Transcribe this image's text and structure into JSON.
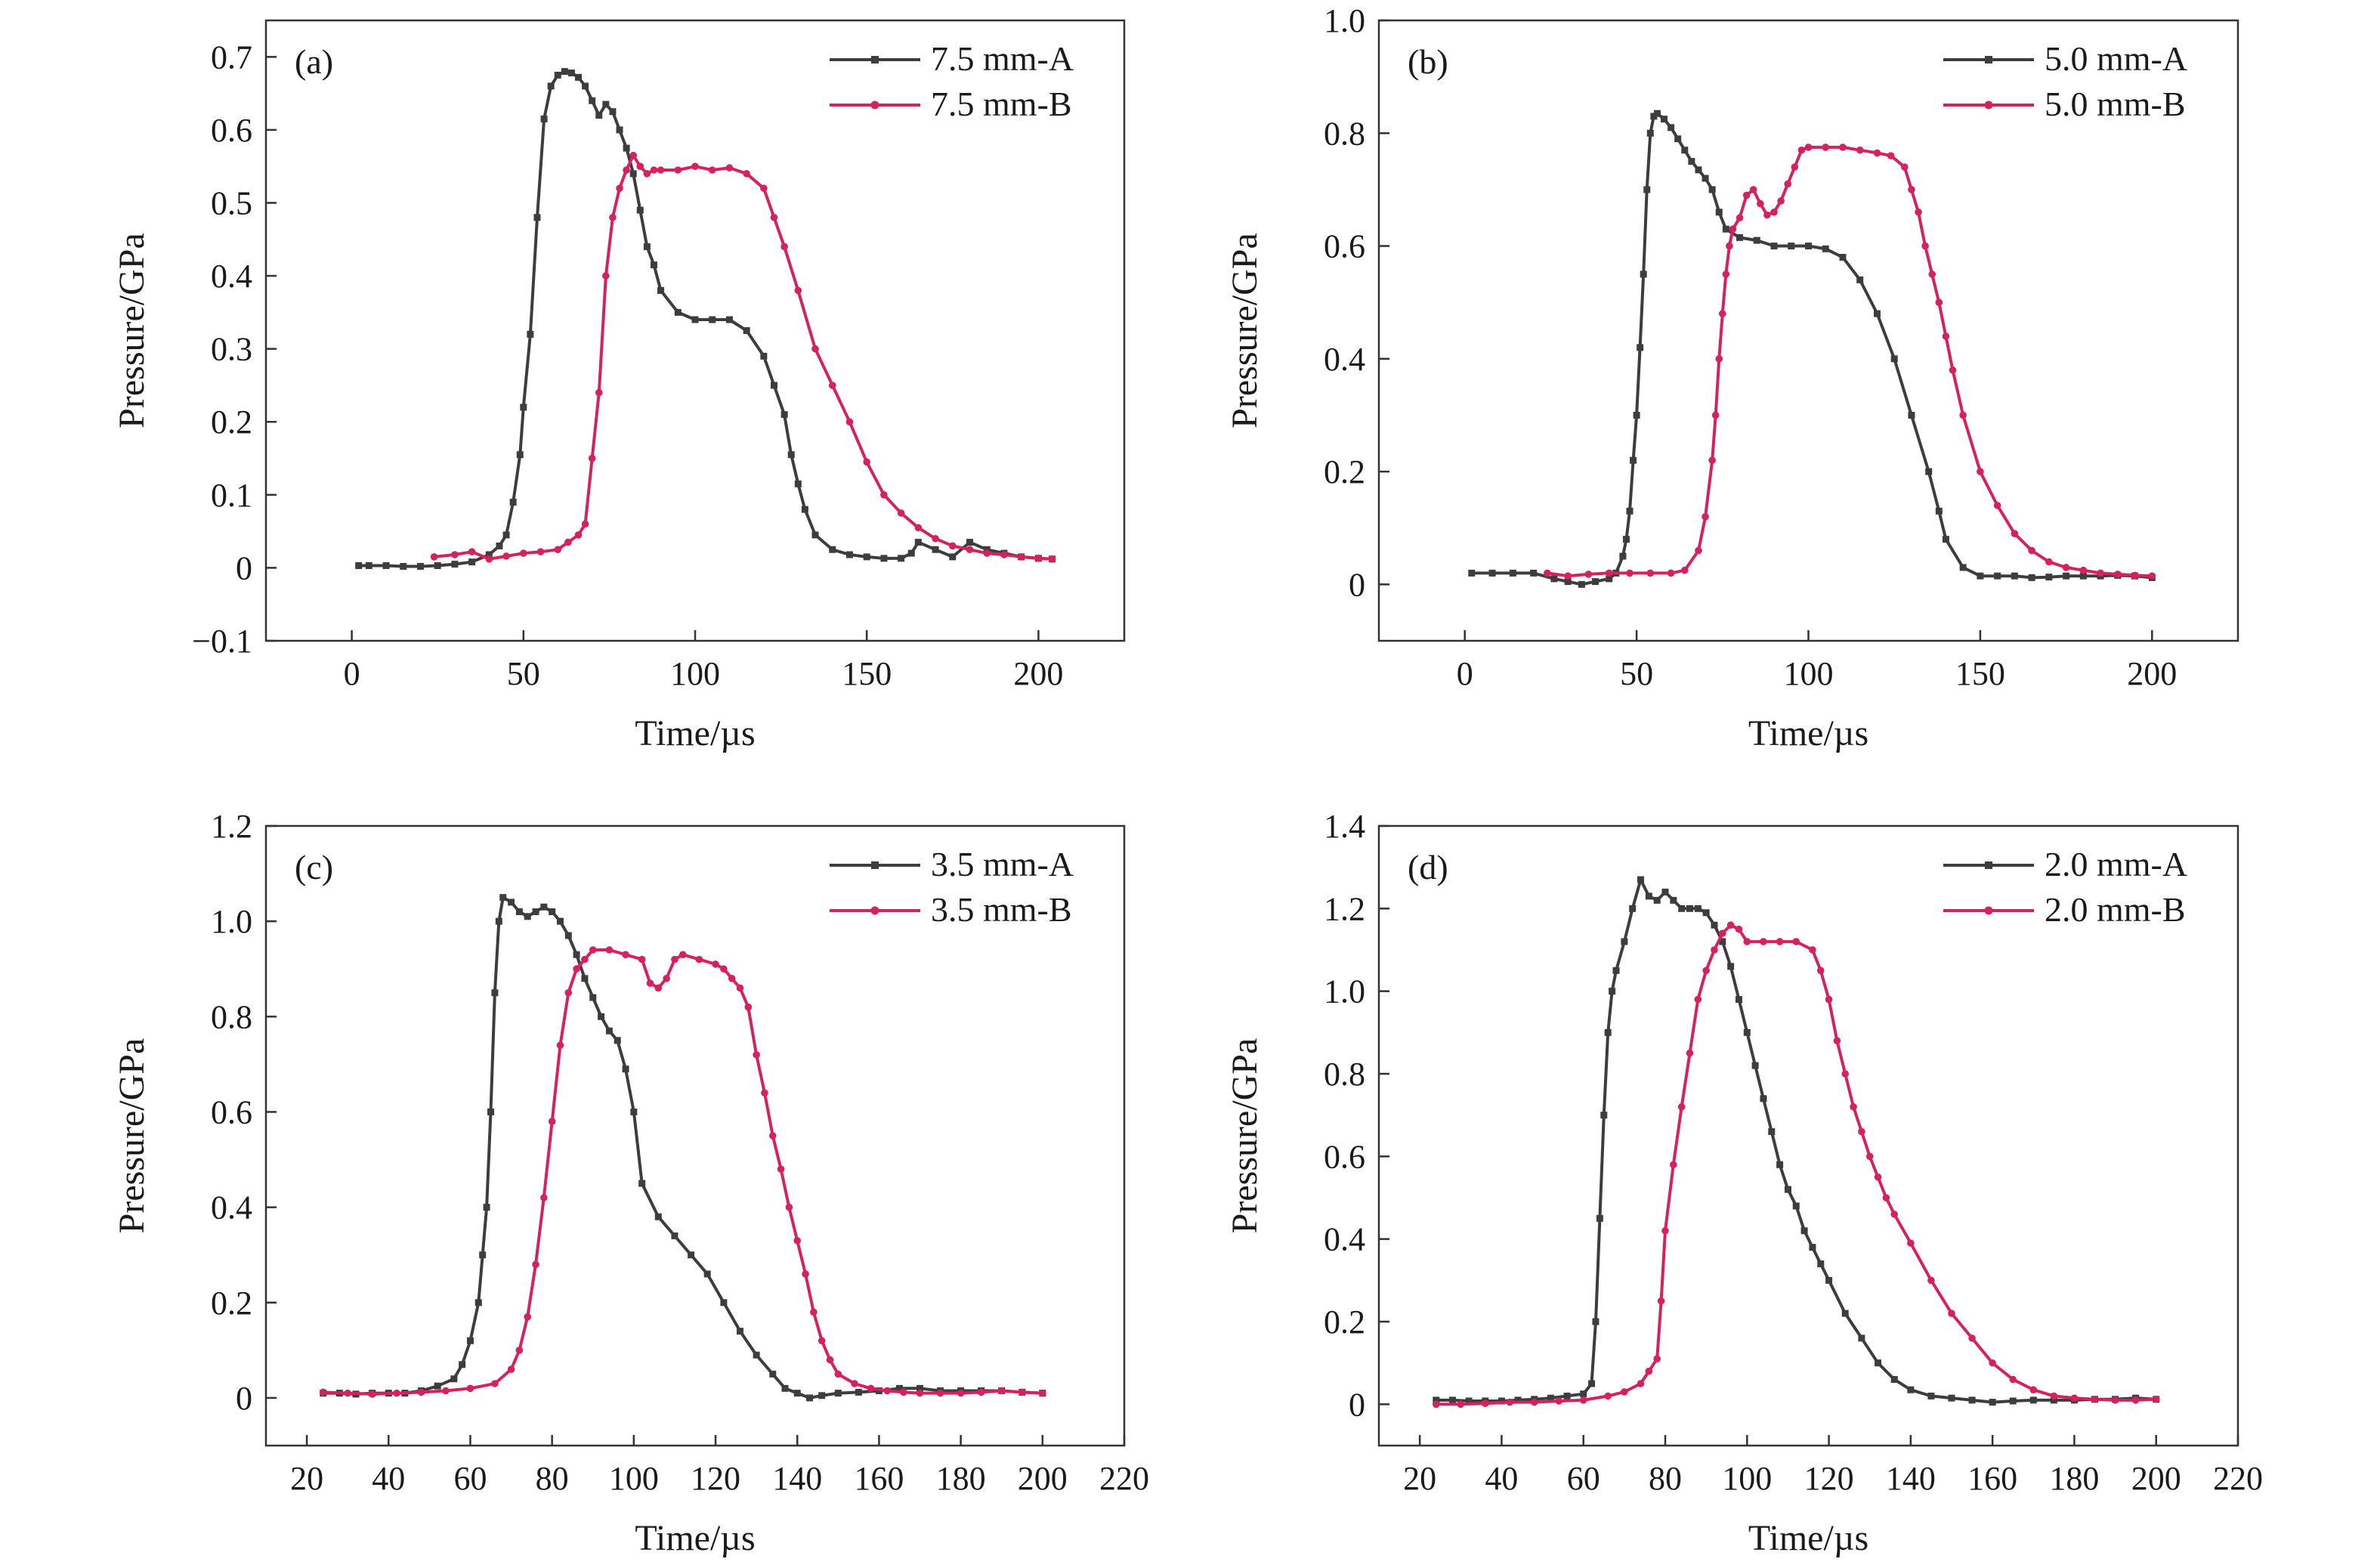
{
  "chart_data": [
    {
      "type": "line",
      "panel_label": "(a)",
      "xlabel": "Time/µs",
      "ylabel": "Pressure/GPa",
      "xlim": [
        -25,
        225
      ],
      "ylim": [
        -0.1,
        0.75
      ],
      "xticks": [
        0,
        50,
        100,
        150,
        200
      ],
      "xtick_labels": [
        "0",
        "50",
        "100",
        "150",
        "200"
      ],
      "yticks": [
        -0.1,
        0,
        0.1,
        0.2,
        0.3,
        0.4,
        0.5,
        0.6,
        0.7
      ],
      "ytick_labels": [
        "−0.1",
        "0",
        "0.1",
        "0.2",
        "0.3",
        "0.4",
        "0.5",
        "0.6",
        "0.7"
      ],
      "legend_position": "top-right",
      "series": [
        {
          "name": "7.5 mm-A",
          "color": "#3d3d3d",
          "marker": "square",
          "x": [
            2,
            5,
            10,
            15,
            20,
            25,
            30,
            35,
            40,
            43,
            45,
            47,
            49,
            50,
            52,
            54,
            56,
            58,
            60,
            62,
            64,
            66,
            68,
            70,
            72,
            74,
            76,
            78,
            80,
            82,
            84,
            86,
            88,
            90,
            95,
            100,
            105,
            110,
            115,
            120,
            123,
            126,
            128,
            130,
            132,
            135,
            140,
            145,
            150,
            155,
            160,
            163,
            165,
            170,
            175,
            180,
            185,
            190,
            195,
            200,
            204
          ],
          "y": [
            0.003,
            0.003,
            0.003,
            0.002,
            0.002,
            0.003,
            0.005,
            0.008,
            0.018,
            0.03,
            0.045,
            0.09,
            0.155,
            0.22,
            0.32,
            0.48,
            0.615,
            0.66,
            0.675,
            0.68,
            0.678,
            0.672,
            0.66,
            0.64,
            0.62,
            0.635,
            0.625,
            0.6,
            0.575,
            0.54,
            0.49,
            0.44,
            0.415,
            0.38,
            0.35,
            0.34,
            0.34,
            0.34,
            0.325,
            0.29,
            0.25,
            0.21,
            0.155,
            0.115,
            0.08,
            0.045,
            0.025,
            0.018,
            0.015,
            0.013,
            0.013,
            0.02,
            0.035,
            0.025,
            0.015,
            0.035,
            0.025,
            0.02,
            0.015,
            0.013,
            0.012
          ]
        },
        {
          "name": "7.5 mm-B",
          "color": "#d6215f",
          "marker": "circle",
          "x": [
            24,
            30,
            35,
            40,
            45,
            50,
            55,
            60,
            63,
            66,
            68,
            70,
            72,
            74,
            76,
            78,
            80,
            82,
            84,
            86,
            88,
            90,
            95,
            100,
            105,
            110,
            115,
            120,
            123,
            126,
            130,
            135,
            140,
            145,
            150,
            155,
            160,
            165,
            170,
            175,
            180,
            185,
            190,
            195,
            200,
            204
          ],
          "y": [
            0.015,
            0.018,
            0.022,
            0.012,
            0.016,
            0.02,
            0.022,
            0.025,
            0.035,
            0.045,
            0.06,
            0.15,
            0.24,
            0.4,
            0.48,
            0.52,
            0.545,
            0.565,
            0.55,
            0.54,
            0.545,
            0.545,
            0.545,
            0.55,
            0.545,
            0.548,
            0.54,
            0.52,
            0.48,
            0.44,
            0.38,
            0.3,
            0.25,
            0.2,
            0.145,
            0.1,
            0.075,
            0.055,
            0.04,
            0.03,
            0.025,
            0.02,
            0.018,
            0.015,
            0.013,
            0.012
          ]
        }
      ]
    },
    {
      "type": "line",
      "panel_label": "(b)",
      "xlabel": "Time/µs",
      "ylabel": "Pressure/GPa",
      "xlim": [
        -25,
        225
      ],
      "ylim": [
        -0.1,
        1.0
      ],
      "xticks": [
        0,
        50,
        100,
        150,
        200
      ],
      "xtick_labels": [
        "0",
        "50",
        "100",
        "150",
        "200"
      ],
      "yticks": [
        0,
        0.2,
        0.4,
        0.6,
        0.8,
        1.0
      ],
      "ytick_labels": [
        "0",
        "0.2",
        "0.4",
        "0.6",
        "0.8",
        "1.0"
      ],
      "legend_position": "top-right",
      "series": [
        {
          "name": "5.0 mm-A",
          "color": "#3d3d3d",
          "marker": "square",
          "x": [
            2,
            8,
            14,
            20,
            26,
            30,
            34,
            38,
            42,
            44,
            46,
            47,
            48,
            49,
            50,
            51,
            52,
            53,
            54,
            55,
            56,
            58,
            60,
            62,
            64,
            66,
            68,
            70,
            72,
            74,
            76,
            80,
            85,
            90,
            95,
            100,
            105,
            110,
            115,
            120,
            125,
            130,
            135,
            138,
            140,
            145,
            150,
            155,
            160,
            165,
            170,
            175,
            180,
            185,
            190,
            195,
            200
          ],
          "y": [
            0.02,
            0.02,
            0.02,
            0.02,
            0.01,
            0.005,
            0.0,
            0.005,
            0.01,
            0.02,
            0.05,
            0.08,
            0.13,
            0.22,
            0.3,
            0.42,
            0.55,
            0.7,
            0.8,
            0.83,
            0.835,
            0.825,
            0.81,
            0.79,
            0.77,
            0.75,
            0.735,
            0.72,
            0.7,
            0.66,
            0.63,
            0.615,
            0.61,
            0.6,
            0.6,
            0.6,
            0.595,
            0.58,
            0.54,
            0.48,
            0.4,
            0.3,
            0.2,
            0.13,
            0.08,
            0.03,
            0.015,
            0.015,
            0.015,
            0.012,
            0.013,
            0.015,
            0.015,
            0.015,
            0.016,
            0.015,
            0.012
          ]
        },
        {
          "name": "5.0 mm-B",
          "color": "#d6215f",
          "marker": "circle",
          "x": [
            24,
            30,
            36,
            42,
            48,
            54,
            60,
            64,
            68,
            70,
            72,
            73,
            74,
            75,
            76,
            77,
            78,
            80,
            82,
            84,
            86,
            88,
            90,
            92,
            94,
            96,
            98,
            100,
            105,
            110,
            115,
            120,
            124,
            128,
            130,
            132,
            134,
            136,
            138,
            140,
            142,
            145,
            150,
            155,
            160,
            165,
            170,
            175,
            180,
            185,
            190,
            195,
            200
          ],
          "y": [
            0.02,
            0.015,
            0.018,
            0.02,
            0.02,
            0.02,
            0.02,
            0.025,
            0.06,
            0.12,
            0.22,
            0.3,
            0.4,
            0.48,
            0.55,
            0.6,
            0.63,
            0.65,
            0.69,
            0.7,
            0.675,
            0.655,
            0.66,
            0.68,
            0.71,
            0.74,
            0.77,
            0.775,
            0.775,
            0.775,
            0.77,
            0.765,
            0.76,
            0.74,
            0.7,
            0.66,
            0.6,
            0.55,
            0.5,
            0.44,
            0.38,
            0.3,
            0.2,
            0.14,
            0.09,
            0.06,
            0.04,
            0.03,
            0.025,
            0.02,
            0.018,
            0.016,
            0.015
          ]
        }
      ]
    },
    {
      "type": "line",
      "panel_label": "(c)",
      "xlabel": "Time/µs",
      "ylabel": "Pressure/GPa",
      "xlim": [
        10,
        220
      ],
      "ylim": [
        -0.1,
        1.2
      ],
      "xticks": [
        20,
        40,
        60,
        80,
        100,
        120,
        140,
        160,
        180,
        200,
        220
      ],
      "xtick_labels": [
        "20",
        "40",
        "60",
        "80",
        "100",
        "120",
        "140",
        "160",
        "180",
        "200",
        "220"
      ],
      "yticks": [
        0,
        0.2,
        0.4,
        0.6,
        0.8,
        1.0,
        1.2
      ],
      "ytick_labels": [
        "0",
        "0.2",
        "0.4",
        "0.6",
        "0.8",
        "1.0",
        "1.2"
      ],
      "legend_position": "top-right",
      "series": [
        {
          "name": "3.5 mm-A",
          "color": "#3d3d3d",
          "marker": "square",
          "x": [
            24,
            28,
            32,
            36,
            40,
            44,
            48,
            52,
            56,
            58,
            60,
            62,
            63,
            64,
            65,
            66,
            67,
            68,
            70,
            72,
            74,
            76,
            78,
            80,
            82,
            84,
            86,
            88,
            90,
            92,
            94,
            96,
            98,
            100,
            102,
            106,
            110,
            114,
            118,
            122,
            126,
            130,
            134,
            137,
            140,
            143,
            146,
            150,
            155,
            160,
            165,
            170,
            175,
            180,
            185,
            190,
            195,
            200
          ],
          "y": [
            0.01,
            0.01,
            0.008,
            0.01,
            0.01,
            0.01,
            0.015,
            0.025,
            0.04,
            0.07,
            0.12,
            0.2,
            0.3,
            0.4,
            0.6,
            0.85,
            1.0,
            1.05,
            1.04,
            1.02,
            1.01,
            1.02,
            1.03,
            1.02,
            1.0,
            0.97,
            0.93,
            0.88,
            0.84,
            0.8,
            0.77,
            0.75,
            0.69,
            0.6,
            0.45,
            0.38,
            0.34,
            0.3,
            0.26,
            0.2,
            0.14,
            0.09,
            0.05,
            0.02,
            0.01,
            0.0,
            0.005,
            0.01,
            0.012,
            0.015,
            0.02,
            0.02,
            0.015,
            0.015,
            0.015,
            0.015,
            0.012,
            0.01
          ]
        },
        {
          "name": "3.5 mm-B",
          "color": "#d6215f",
          "marker": "circle",
          "x": [
            24,
            30,
            36,
            42,
            48,
            54,
            60,
            66,
            70,
            72,
            74,
            76,
            78,
            80,
            82,
            84,
            86,
            88,
            90,
            94,
            98,
            102,
            104,
            106,
            108,
            110,
            112,
            116,
            120,
            122,
            124,
            126,
            128,
            130,
            132,
            134,
            136,
            138,
            140,
            142,
            144,
            146,
            148,
            150,
            154,
            158,
            162,
            166,
            170,
            175,
            180,
            185,
            190,
            195,
            200
          ],
          "y": [
            0.012,
            0.01,
            0.008,
            0.01,
            0.012,
            0.015,
            0.02,
            0.03,
            0.06,
            0.1,
            0.17,
            0.28,
            0.42,
            0.58,
            0.74,
            0.85,
            0.9,
            0.92,
            0.94,
            0.94,
            0.93,
            0.92,
            0.87,
            0.86,
            0.88,
            0.92,
            0.93,
            0.92,
            0.91,
            0.9,
            0.88,
            0.86,
            0.82,
            0.72,
            0.64,
            0.55,
            0.48,
            0.4,
            0.33,
            0.26,
            0.18,
            0.12,
            0.08,
            0.05,
            0.03,
            0.02,
            0.015,
            0.012,
            0.01,
            0.01,
            0.01,
            0.012,
            0.015,
            0.012,
            0.01
          ]
        }
      ]
    },
    {
      "type": "line",
      "panel_label": "(d)",
      "xlabel": "Time/µs",
      "ylabel": "Pressure/GPa",
      "xlim": [
        10,
        220
      ],
      "ylim": [
        -0.1,
        1.4
      ],
      "xticks": [
        20,
        40,
        60,
        80,
        100,
        120,
        140,
        160,
        180,
        200,
        220
      ],
      "xtick_labels": [
        "20",
        "40",
        "60",
        "80",
        "100",
        "120",
        "140",
        "160",
        "180",
        "200",
        "220"
      ],
      "yticks": [
        0,
        0.2,
        0.4,
        0.6,
        0.8,
        1.0,
        1.2,
        1.4
      ],
      "ytick_labels": [
        "0",
        "0.2",
        "0.4",
        "0.6",
        "0.8",
        "1.0",
        "1.2",
        "1.4"
      ],
      "legend_position": "top-right",
      "series": [
        {
          "name": "2.0 mm-A",
          "color": "#3d3d3d",
          "marker": "square",
          "x": [
            24,
            28,
            32,
            36,
            40,
            44,
            48,
            52,
            56,
            60,
            62,
            63,
            64,
            65,
            66,
            67,
            68,
            70,
            72,
            74,
            76,
            78,
            80,
            82,
            84,
            86,
            88,
            90,
            92,
            94,
            96,
            98,
            100,
            102,
            104,
            106,
            108,
            110,
            112,
            114,
            116,
            118,
            120,
            124,
            128,
            132,
            136,
            140,
            145,
            150,
            155,
            160,
            165,
            170,
            175,
            180,
            185,
            190,
            195,
            200
          ],
          "y": [
            0.01,
            0.01,
            0.008,
            0.008,
            0.008,
            0.01,
            0.012,
            0.015,
            0.02,
            0.025,
            0.05,
            0.2,
            0.45,
            0.7,
            0.9,
            1.0,
            1.05,
            1.12,
            1.2,
            1.27,
            1.23,
            1.22,
            1.24,
            1.22,
            1.2,
            1.2,
            1.2,
            1.19,
            1.16,
            1.12,
            1.06,
            0.98,
            0.9,
            0.82,
            0.74,
            0.66,
            0.58,
            0.52,
            0.48,
            0.42,
            0.38,
            0.34,
            0.3,
            0.22,
            0.16,
            0.1,
            0.06,
            0.035,
            0.02,
            0.015,
            0.01,
            0.005,
            0.008,
            0.01,
            0.01,
            0.01,
            0.012,
            0.012,
            0.015,
            0.012
          ]
        },
        {
          "name": "2.0 mm-B",
          "color": "#d6215f",
          "marker": "circle",
          "x": [
            24,
            30,
            36,
            42,
            48,
            54,
            60,
            66,
            70,
            74,
            76,
            78,
            79,
            80,
            82,
            84,
            86,
            88,
            90,
            92,
            94,
            96,
            98,
            100,
            104,
            108,
            112,
            116,
            118,
            120,
            122,
            124,
            126,
            128,
            130,
            132,
            134,
            136,
            140,
            145,
            150,
            155,
            160,
            165,
            170,
            175,
            180,
            185,
            190,
            195,
            200
          ],
          "y": [
            0.0,
            0.0,
            0.002,
            0.005,
            0.005,
            0.008,
            0.01,
            0.02,
            0.03,
            0.05,
            0.08,
            0.11,
            0.25,
            0.42,
            0.58,
            0.72,
            0.85,
            0.98,
            1.05,
            1.1,
            1.14,
            1.16,
            1.15,
            1.12,
            1.12,
            1.12,
            1.12,
            1.1,
            1.05,
            0.98,
            0.88,
            0.8,
            0.72,
            0.66,
            0.6,
            0.55,
            0.5,
            0.46,
            0.39,
            0.3,
            0.22,
            0.16,
            0.1,
            0.06,
            0.035,
            0.02,
            0.015,
            0.012,
            0.01,
            0.01,
            0.012
          ]
        }
      ]
    }
  ]
}
